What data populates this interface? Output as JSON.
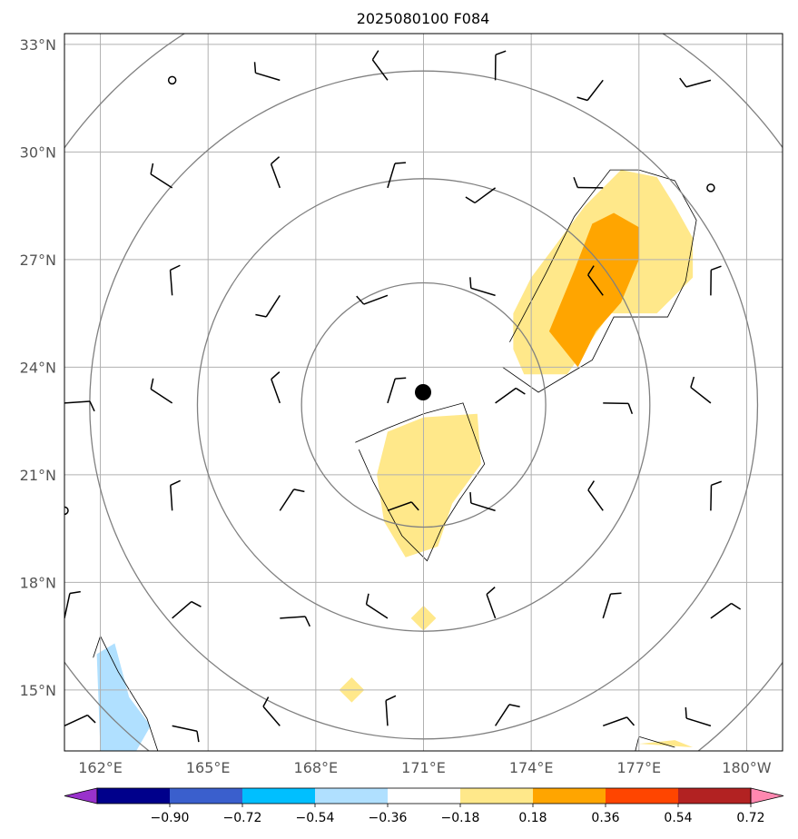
{
  "chart_data": {
    "type": "map_contour",
    "title": "2025080100 F084",
    "lon_range": [
      161,
      181
    ],
    "lat_range": [
      13.3,
      33.3
    ],
    "x_ticks": [
      162,
      165,
      168,
      171,
      174,
      177,
      180
    ],
    "x_tick_labels": [
      "162°E",
      "165°E",
      "168°E",
      "171°E",
      "174°E",
      "177°E",
      "180°W"
    ],
    "y_ticks": [
      15,
      18,
      21,
      24,
      27,
      30,
      33
    ],
    "y_tick_labels": [
      "15°N",
      "18°N",
      "21°N",
      "24°N",
      "27°N",
      "30°N",
      "33°N"
    ],
    "grid": true,
    "center": {
      "lon": 170.7,
      "lat": 23.3
    },
    "range_rings_deg": [
      3.4,
      6.3,
      9.3,
      12.3
    ],
    "colorbar": {
      "levels": [
        -0.9,
        -0.72,
        -0.54,
        -0.36,
        -0.18,
        0.18,
        0.36,
        0.54,
        0.72,
        0.9
      ],
      "tick_labels": [
        "−0.90",
        "−0.72",
        "−0.54",
        "−0.36",
        "−0.18",
        "0.18",
        "0.36",
        "0.54",
        "0.72",
        "0.90"
      ],
      "colors": [
        "#9932cc",
        "#00008b",
        "#3a5fcd",
        "#00bfff",
        "#b0e0ff",
        "#ffffff",
        "#ffe88a",
        "#ffa500",
        "#ff4500",
        "#b22222",
        "#ff88b0"
      ],
      "extend": "both"
    },
    "filled_regions": [
      {
        "level": "0.18-0.36",
        "color": "#ffe88a",
        "points": [
          [
            174,
            26.5
          ],
          [
            175.5,
            28.5
          ],
          [
            176.5,
            29.5
          ],
          [
            177.5,
            29.3
          ],
          [
            178,
            28.5
          ],
          [
            178.5,
            27.6
          ],
          [
            178.5,
            26.5
          ],
          [
            177.5,
            25.5
          ],
          [
            176.2,
            25.5
          ],
          [
            175,
            23.8
          ],
          [
            173.8,
            23.8
          ],
          [
            173.5,
            24.5
          ],
          [
            173.5,
            25.5
          ]
        ]
      },
      {
        "level": "0.36-0.54",
        "color": "#ffa500",
        "points": [
          [
            174.5,
            25
          ],
          [
            175.2,
            26.7
          ],
          [
            175.7,
            28
          ],
          [
            176.3,
            28.3
          ],
          [
            177,
            27.9
          ],
          [
            177,
            27
          ],
          [
            176.5,
            25.8
          ],
          [
            175.8,
            25
          ],
          [
            175.3,
            24
          ]
        ]
      },
      {
        "level": "0.18-0.36",
        "color": "#ffe88a",
        "points": [
          [
            170,
            22.2
          ],
          [
            171,
            22.6
          ],
          [
            172.5,
            22.7
          ],
          [
            172.6,
            21.3
          ],
          [
            171.8,
            20.2
          ],
          [
            171.4,
            19
          ],
          [
            170.5,
            18.7
          ],
          [
            169.9,
            19.7
          ],
          [
            169.7,
            21
          ]
        ]
      },
      {
        "level": "0.18-0.36",
        "color": "#ffe88a",
        "points": [
          [
            171,
            17.35
          ],
          [
            171.35,
            17
          ],
          [
            171,
            16.65
          ],
          [
            170.65,
            17
          ]
        ]
      },
      {
        "level": "0.18-0.36",
        "color": "#ffe88a",
        "points": [
          [
            169,
            15.35
          ],
          [
            169.35,
            15
          ],
          [
            169,
            14.65
          ],
          [
            168.65,
            15
          ]
        ]
      },
      {
        "level": "0.18-0.36",
        "color": "#ffe88a",
        "points": [
          [
            177,
            13.5
          ],
          [
            178,
            13.6
          ],
          [
            178.5,
            13.4
          ]
        ]
      },
      {
        "level": "-0.36--0.18",
        "color": "#b0e0ff",
        "points": [
          [
            161.9,
            16
          ],
          [
            162.4,
            16.3
          ],
          [
            162.8,
            14.8
          ],
          [
            163.4,
            14
          ],
          [
            163,
            13.3
          ],
          [
            162,
            13.3
          ]
        ]
      }
    ],
    "contour_lines": [
      [
        [
          173.4,
          24.7
        ],
        [
          174.4,
          26.6
        ],
        [
          175.2,
          28.2
        ],
        [
          176.2,
          29.5
        ],
        [
          177,
          29.5
        ],
        [
          178,
          29.2
        ],
        [
          178.6,
          28.1
        ],
        [
          178.3,
          26.4
        ],
        [
          177.8,
          25.4
        ],
        [
          176.3,
          25.4
        ],
        [
          175.7,
          24.2
        ],
        [
          174.2,
          23.3
        ],
        [
          173.2,
          24
        ]
      ],
      [
        [
          169.1,
          21.9
        ],
        [
          170,
          22.3
        ],
        [
          171,
          22.7
        ],
        [
          172.1,
          23
        ],
        [
          172.7,
          21.3
        ],
        [
          172,
          20.3
        ],
        [
          171.5,
          19.5
        ],
        [
          171.1,
          18.6
        ],
        [
          170.4,
          19.3
        ],
        [
          169.6,
          20.8
        ],
        [
          169.2,
          21.7
        ]
      ],
      [
        [
          161.8,
          15.9
        ],
        [
          162,
          16.5
        ],
        [
          162.5,
          15.5
        ],
        [
          163.3,
          14.2
        ],
        [
          163.6,
          13.3
        ]
      ],
      [
        [
          176.9,
          13.3
        ],
        [
          177,
          13.7
        ],
        [
          178,
          13.4
        ]
      ]
    ],
    "wind_barbs": {
      "lons": [
        161,
        164,
        167,
        170,
        173,
        176,
        179
      ],
      "lats": [
        32,
        29,
        26,
        23,
        20,
        17,
        14
      ],
      "calm_points": [
        [
          164,
          32
        ],
        [
          179,
          29
        ],
        [
          161,
          20
        ]
      ]
    }
  }
}
